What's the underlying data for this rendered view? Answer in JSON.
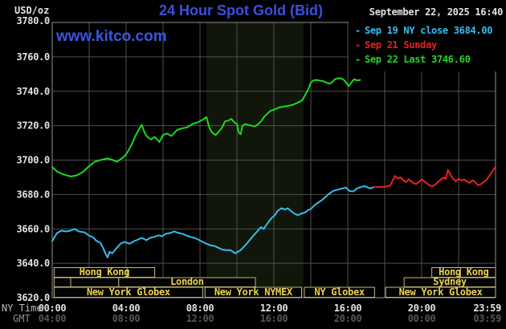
{
  "header": {
    "unit_label": "USD/oz",
    "title": "24 Hour Spot Gold (Bid)",
    "date": "September 22, 2025 16:40"
  },
  "watermark": {
    "text": "www.kitco.com"
  },
  "legend": {
    "items": [
      {
        "dash": "-",
        "label": "Sep 19 NY close 3684.00",
        "color": "#35bdf0"
      },
      {
        "dash": "-",
        "label": "Sep 21 Sunday",
        "color": "#e82222"
      },
      {
        "dash": "-",
        "label": "Sep 22 Last 3746.60",
        "color": "#1fd81f"
      }
    ]
  },
  "x_axis": {
    "ny_label": "NY Time",
    "gmt_label": "GMT",
    "ticks": [
      {
        "hour": 0,
        "ny": "00:00",
        "gmt": "04:00"
      },
      {
        "hour": 4,
        "ny": "04:00",
        "gmt": "08:00"
      },
      {
        "hour": 8,
        "ny": "08:00",
        "gmt": "12:00"
      },
      {
        "hour": 12,
        "ny": "12:00",
        "gmt": "16:00"
      },
      {
        "hour": 16,
        "ny": "16:00",
        "gmt": "20:00"
      },
      {
        "hour": 20,
        "ny": "20:00",
        "gmt": "00:00"
      },
      {
        "hour": 23.98,
        "ny": "23:59",
        "gmt": "03:59"
      }
    ]
  },
  "chart_data": {
    "type": "line",
    "title": "24 Hour Spot Gold (Bid)",
    "xlabel": "NY Time (hours 00:00-23:59)",
    "ylabel": "USD/oz",
    "ylim": [
      3620,
      3780
    ],
    "xlim_hours": [
      0,
      24
    ],
    "grid": true,
    "legend_position": "top-right",
    "y_ticks": [
      "3780.0",
      "3760.0",
      "3740.0",
      "3720.0",
      "3700.0",
      "3680.0",
      "3660.0",
      "3640.0",
      "3620.0"
    ],
    "colors": {
      "background": "#000000",
      "band": "#11160b",
      "grid": "#505050",
      "border": "#8f8f8f",
      "session_border": "#c6ba7a",
      "session_text": "#ecd14e",
      "title": "#3b50dc",
      "watermark": "#3c55e2",
      "date_text": "#e2e2e2",
      "axis_text": "#e2e2e2",
      "gmt_text": "#575757",
      "row_label": "#b9b9b9",
      "gmt_label": "#8d8d8d"
    },
    "nymex_band": {
      "start_hour": 8.35,
      "end_hour": 13.6
    },
    "sessions": [
      {
        "row": 1,
        "start_hour": 0.1,
        "end_hour": 5.55,
        "label": "Hong Kong",
        "dividers": [
          4.05
        ]
      },
      {
        "row": 1,
        "start_hour": 20.55,
        "end_hour": 24,
        "label": "Hong Kong",
        "dividers": [
          22.1
        ]
      },
      {
        "row": 2,
        "start_hour": 0.1,
        "end_hour": 1.0,
        "label": "",
        "dividers": []
      },
      {
        "row": 2,
        "start_hour": 1.0,
        "end_hour": 3.6,
        "label": "",
        "dividers": []
      },
      {
        "row": 2,
        "start_hour": 3.6,
        "end_hour": 11.0,
        "label": "London",
        "dividers": []
      },
      {
        "row": 2,
        "start_hour": 19.05,
        "end_hour": 24,
        "label": "Sydney",
        "dividers": [
          22.05
        ]
      },
      {
        "row": 3,
        "start_hour": 0.1,
        "end_hour": 8.15,
        "label": "New York Globex",
        "dividers": []
      },
      {
        "row": 3,
        "start_hour": 8.27,
        "end_hour": 13.5,
        "label": "New York NYMEX",
        "dividers": []
      },
      {
        "row": 3,
        "start_hour": 13.65,
        "end_hour": 17.45,
        "label": "NY Globex",
        "dividers": []
      },
      {
        "row": 3,
        "start_hour": 18.05,
        "end_hour": 24,
        "label": "New York Globex",
        "dividers": []
      }
    ],
    "series": [
      {
        "id": "sep19-ny-close",
        "name": "Sep 19 NY close 3684.00",
        "close_value": 3684.0,
        "color": "#35bdf0",
        "points": [
          [
            0,
            3653
          ],
          [
            0.25,
            3657.5
          ],
          [
            0.5,
            3659
          ],
          [
            0.75,
            3658.5
          ],
          [
            1,
            3659
          ],
          [
            1.2,
            3660
          ],
          [
            1.45,
            3658.5
          ],
          [
            1.75,
            3658
          ],
          [
            2,
            3656
          ],
          [
            2.2,
            3655.3
          ],
          [
            2.4,
            3653
          ],
          [
            2.6,
            3652
          ],
          [
            2.75,
            3649
          ],
          [
            2.9,
            3645.3
          ],
          [
            3,
            3643.4
          ],
          [
            3.1,
            3646.7
          ],
          [
            3.25,
            3645.8
          ],
          [
            3.5,
            3649
          ],
          [
            3.7,
            3651.4
          ],
          [
            3.9,
            3652.4
          ],
          [
            4.2,
            3651.4
          ],
          [
            4.45,
            3653
          ],
          [
            4.65,
            3653.8
          ],
          [
            4.85,
            3654.8
          ],
          [
            5.1,
            3653.4
          ],
          [
            5.3,
            3654.8
          ],
          [
            5.5,
            3655.3
          ],
          [
            5.75,
            3656.2
          ],
          [
            5.95,
            3655.8
          ],
          [
            6.15,
            3657.2
          ],
          [
            6.4,
            3657.6
          ],
          [
            6.6,
            3658.6
          ],
          [
            6.85,
            3657.6
          ],
          [
            7.05,
            3657.2
          ],
          [
            7.25,
            3656.2
          ],
          [
            7.5,
            3655.3
          ],
          [
            7.7,
            3654.8
          ],
          [
            7.9,
            3653.8
          ],
          [
            8.15,
            3652.4
          ],
          [
            8.35,
            3651.4
          ],
          [
            8.55,
            3650.5
          ],
          [
            8.8,
            3650
          ],
          [
            9,
            3649
          ],
          [
            9.2,
            3648
          ],
          [
            9.45,
            3647.6
          ],
          [
            9.65,
            3647.6
          ],
          [
            9.9,
            3645.8
          ],
          [
            10.2,
            3647.6
          ],
          [
            10.45,
            3650.5
          ],
          [
            10.65,
            3653
          ],
          [
            10.9,
            3656.2
          ],
          [
            11.1,
            3658.6
          ],
          [
            11.3,
            3661
          ],
          [
            11.45,
            3660
          ],
          [
            11.6,
            3662.4
          ],
          [
            11.75,
            3664.7
          ],
          [
            11.9,
            3666.6
          ],
          [
            12.05,
            3668
          ],
          [
            12.2,
            3670.4
          ],
          [
            12.4,
            3672
          ],
          [
            12.6,
            3671.3
          ],
          [
            12.75,
            3672
          ],
          [
            12.9,
            3670.6
          ],
          [
            13.1,
            3669
          ],
          [
            13.3,
            3668
          ],
          [
            13.5,
            3669
          ],
          [
            13.7,
            3669.6
          ],
          [
            13.85,
            3671
          ],
          [
            14,
            3671.5
          ],
          [
            14.2,
            3673.8
          ],
          [
            14.4,
            3675.3
          ],
          [
            14.6,
            3676.7
          ],
          [
            14.8,
            3678.6
          ],
          [
            15,
            3680.5
          ],
          [
            15.2,
            3682
          ],
          [
            15.5,
            3683
          ],
          [
            15.9,
            3684
          ],
          [
            16.1,
            3682
          ],
          [
            16.3,
            3681.8
          ],
          [
            16.5,
            3683.5
          ],
          [
            16.7,
            3684.3
          ],
          [
            16.9,
            3684.9
          ],
          [
            17.1,
            3684
          ],
          [
            17.25,
            3683.6
          ],
          [
            17.4,
            3684.3
          ]
        ]
      },
      {
        "id": "sep21-sunday",
        "name": "Sep 21 Sunday",
        "color": "#e82222",
        "points": [
          [
            17.4,
            3684.3
          ],
          [
            17.8,
            3684.4
          ],
          [
            18.1,
            3684.6
          ],
          [
            18.3,
            3685.2
          ],
          [
            18.45,
            3688.5
          ],
          [
            18.55,
            3690.8
          ],
          [
            18.7,
            3689.3
          ],
          [
            18.85,
            3690
          ],
          [
            19,
            3688.3
          ],
          [
            19.15,
            3687.2
          ],
          [
            19.3,
            3688.8
          ],
          [
            19.5,
            3687
          ],
          [
            19.7,
            3686
          ],
          [
            19.85,
            3687.3
          ],
          [
            20,
            3688.8
          ],
          [
            20.15,
            3687.6
          ],
          [
            20.3,
            3686.3
          ],
          [
            20.45,
            3685.2
          ],
          [
            20.6,
            3684.9
          ],
          [
            20.75,
            3685.8
          ],
          [
            20.9,
            3687.5
          ],
          [
            21.05,
            3688.8
          ],
          [
            21.2,
            3690
          ],
          [
            21.3,
            3688.9
          ],
          [
            21.42,
            3694.3
          ],
          [
            21.55,
            3691.5
          ],
          [
            21.7,
            3689.2
          ],
          [
            21.85,
            3687.6
          ],
          [
            22,
            3689.2
          ],
          [
            22.15,
            3688.3
          ],
          [
            22.3,
            3688.7
          ],
          [
            22.45,
            3687.5
          ],
          [
            22.6,
            3686.7
          ],
          [
            22.75,
            3688.3
          ],
          [
            22.9,
            3687.2
          ],
          [
            23.05,
            3685.3
          ],
          [
            23.2,
            3686
          ],
          [
            23.35,
            3687.2
          ],
          [
            23.5,
            3688.3
          ],
          [
            23.65,
            3690.7
          ],
          [
            23.8,
            3693
          ],
          [
            23.97,
            3695.8
          ]
        ]
      },
      {
        "id": "sep22-last",
        "name": "Sep 22 Last 3746.60",
        "last_value": 3746.6,
        "color": "#1fd81f",
        "points": [
          [
            0,
            3696
          ],
          [
            0.3,
            3693
          ],
          [
            0.65,
            3691.5
          ],
          [
            1,
            3690.5
          ],
          [
            1.3,
            3691
          ],
          [
            1.65,
            3693
          ],
          [
            2,
            3696.5
          ],
          [
            2.3,
            3699
          ],
          [
            2.6,
            3700
          ],
          [
            3,
            3701
          ],
          [
            3.3,
            3700
          ],
          [
            3.5,
            3699
          ],
          [
            3.7,
            3700.5
          ],
          [
            3.9,
            3702
          ],
          [
            4.1,
            3705
          ],
          [
            4.3,
            3709
          ],
          [
            4.5,
            3714
          ],
          [
            4.7,
            3718
          ],
          [
            4.85,
            3720.5
          ],
          [
            5,
            3716
          ],
          [
            5.15,
            3713.5
          ],
          [
            5.35,
            3712
          ],
          [
            5.55,
            3713.5
          ],
          [
            5.8,
            3710.5
          ],
          [
            6,
            3714.5
          ],
          [
            6.2,
            3715.5
          ],
          [
            6.45,
            3714
          ],
          [
            6.75,
            3717.5
          ],
          [
            7.05,
            3718.5
          ],
          [
            7.3,
            3719
          ],
          [
            7.6,
            3721
          ],
          [
            7.9,
            3722
          ],
          [
            8.15,
            3723.5
          ],
          [
            8.35,
            3725
          ],
          [
            8.5,
            3719
          ],
          [
            8.65,
            3716
          ],
          [
            8.85,
            3714.5
          ],
          [
            9.05,
            3717
          ],
          [
            9.2,
            3719
          ],
          [
            9.35,
            3722.5
          ],
          [
            9.55,
            3723
          ],
          [
            9.7,
            3724
          ],
          [
            9.85,
            3722
          ],
          [
            10,
            3721
          ],
          [
            10.1,
            3716
          ],
          [
            10.2,
            3715
          ],
          [
            10.3,
            3720
          ],
          [
            10.45,
            3721
          ],
          [
            10.6,
            3720.5
          ],
          [
            10.8,
            3720
          ],
          [
            10.95,
            3719.5
          ],
          [
            11.1,
            3720.5
          ],
          [
            11.3,
            3722.5
          ],
          [
            11.5,
            3725.5
          ],
          [
            11.65,
            3727
          ],
          [
            11.8,
            3728.5
          ],
          [
            12,
            3729.3
          ],
          [
            12.25,
            3730.5
          ],
          [
            12.5,
            3731
          ],
          [
            12.75,
            3731.5
          ],
          [
            13,
            3732
          ],
          [
            13.2,
            3733
          ],
          [
            13.4,
            3734
          ],
          [
            13.55,
            3735
          ],
          [
            13.7,
            3738
          ],
          [
            13.85,
            3741
          ],
          [
            14,
            3745
          ],
          [
            14.15,
            3746.3
          ],
          [
            14.3,
            3746.6
          ],
          [
            14.5,
            3746.2
          ],
          [
            14.7,
            3745.8
          ],
          [
            14.85,
            3745
          ],
          [
            15,
            3744.4
          ],
          [
            15.15,
            3745.2
          ],
          [
            15.3,
            3747
          ],
          [
            15.5,
            3747.6
          ],
          [
            15.65,
            3747.5
          ],
          [
            15.8,
            3746.5
          ],
          [
            15.95,
            3744.5
          ],
          [
            16.05,
            3743
          ],
          [
            16.2,
            3745.2
          ],
          [
            16.35,
            3747
          ],
          [
            16.5,
            3746.3
          ],
          [
            16.67,
            3746.6
          ]
        ]
      }
    ]
  }
}
